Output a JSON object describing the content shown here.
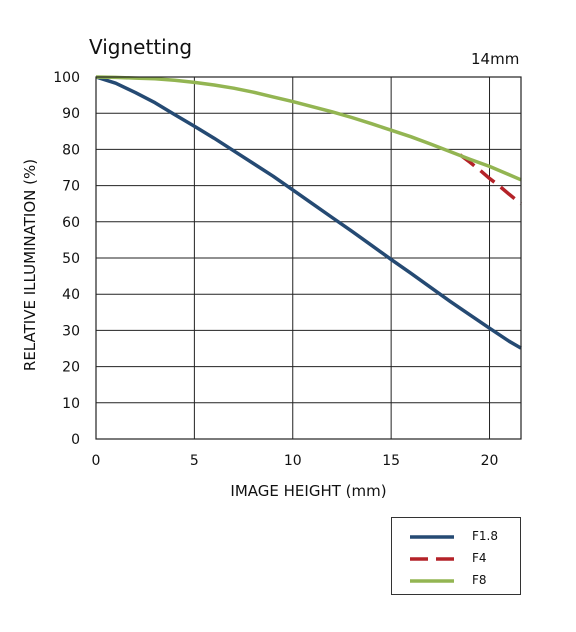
{
  "chart_data": {
    "type": "line",
    "title": "Vignetting",
    "subtitle": "14mm",
    "xlabel": "IMAGE HEIGHT (mm)",
    "ylabel": "RELATIVE ILLUMINATION (%)",
    "xlim": [
      0,
      21.6
    ],
    "ylim": [
      0,
      100
    ],
    "xticks": [
      0,
      5,
      10,
      15,
      20
    ],
    "yticks": [
      0,
      10,
      20,
      30,
      40,
      50,
      60,
      70,
      80,
      90,
      100
    ],
    "grid": true,
    "legend_position": "bottom-right",
    "series": [
      {
        "name": "F1.8",
        "color": "#254a73",
        "dash": "solid",
        "x": [
          0,
          1,
          2,
          3,
          4,
          5,
          6,
          7,
          8,
          9,
          10,
          11,
          12,
          13,
          14,
          15,
          16,
          17,
          18,
          19,
          20,
          21,
          21.6
        ],
        "y": [
          100,
          98.3,
          95.7,
          92.9,
          89.6,
          86.4,
          83.1,
          79.6,
          76.1,
          72.6,
          68.8,
          65.0,
          61.2,
          57.4,
          53.5,
          49.6,
          45.8,
          41.9,
          38.0,
          34.3,
          30.6,
          27.0,
          25.1
        ]
      },
      {
        "name": "F4",
        "color": "#b42228",
        "dash": "dashed",
        "x": [
          18.5,
          19,
          19.5,
          20,
          20.5,
          21,
          21.6
        ],
        "y": [
          78.5,
          76.5,
          74.3,
          72.0,
          69.9,
          67.6,
          65.0
        ]
      },
      {
        "name": "F8",
        "color": "#93b552",
        "dash": "solid",
        "x": [
          0,
          1,
          2,
          3,
          4,
          5,
          6,
          7,
          8,
          9,
          10,
          11,
          12,
          13,
          14,
          15,
          16,
          17,
          18,
          19,
          20,
          21,
          21.6
        ],
        "y": [
          100,
          99.9,
          99.7,
          99.5,
          99.1,
          98.5,
          97.8,
          96.9,
          95.8,
          94.5,
          93.2,
          91.8,
          90.4,
          88.8,
          87.1,
          85.3,
          83.5,
          81.5,
          79.4,
          77.3,
          75.3,
          73.0,
          71.6
        ]
      }
    ]
  }
}
